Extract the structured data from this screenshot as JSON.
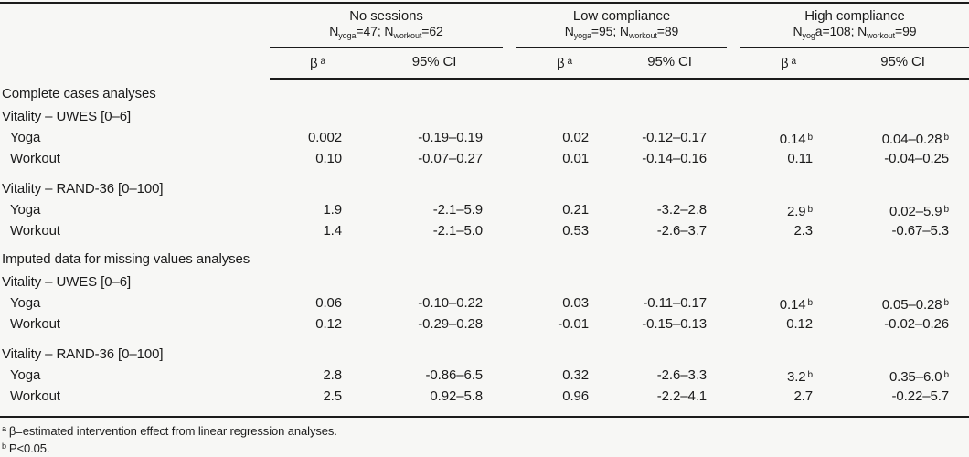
{
  "page": {
    "background": "#f7f7f5",
    "ink": "#1b1b1b"
  },
  "table": {
    "groups": [
      {
        "title": "No sessions",
        "n_segments": [
          {
            "t": "N"
          },
          {
            "sub": "yoga"
          },
          {
            "t": "=47; N"
          },
          {
            "sub": "workout"
          },
          {
            "t": "=62"
          }
        ],
        "beta": "β",
        "beta_sup": "a",
        "ci": "95% CI"
      },
      {
        "title": "Low compliance",
        "n_segments": [
          {
            "t": "N"
          },
          {
            "sub": "yoga"
          },
          {
            "t": "=95; N"
          },
          {
            "sub": "workout"
          },
          {
            "t": "=89"
          }
        ],
        "beta": "β",
        "beta_sup": "a",
        "ci": "95% CI"
      },
      {
        "title": "High compliance",
        "n_segments": [
          {
            "t": "N"
          },
          {
            "sub": "yog"
          },
          {
            "t": "a=108; N"
          },
          {
            "sub": "workout"
          },
          {
            "t": "=99"
          }
        ],
        "beta": "β",
        "beta_sup": "a",
        "ci": "95% CI"
      }
    ],
    "rows": [
      {
        "type": "section",
        "label": "Complete cases analyses"
      },
      {
        "type": "subhead",
        "label": "Vitality – UWES [0–6]"
      },
      {
        "type": "data",
        "label": "Yoga",
        "cells": [
          {
            "beta": "0.002",
            "ci": "-0.19–0.19"
          },
          {
            "beta": "0.02",
            "ci": "-0.12–0.17"
          },
          {
            "beta": "0.14",
            "beta_sup": "b",
            "ci": "0.04–0.28",
            "ci_sup": "b"
          }
        ]
      },
      {
        "type": "data",
        "label": "Workout",
        "cells": [
          {
            "beta": "0.10",
            "ci": "-0.07–0.27"
          },
          {
            "beta": "0.01",
            "ci": "-0.14–0.16"
          },
          {
            "beta": "0.11",
            "ci": "-0.04–0.25"
          }
        ]
      },
      {
        "type": "subhead",
        "label": "Vitality – RAND-36 [0–100]"
      },
      {
        "type": "data",
        "label": "Yoga",
        "cells": [
          {
            "beta": "1.9",
            "ci": "-2.1–5.9"
          },
          {
            "beta": "0.21",
            "ci": "-3.2–2.8"
          },
          {
            "beta": "2.9",
            "beta_sup": "b",
            "ci": "0.02–5.9",
            "ci_sup": "b"
          }
        ]
      },
      {
        "type": "data",
        "label": "Workout",
        "cells": [
          {
            "beta": "1.4",
            "ci": "-2.1–5.0"
          },
          {
            "beta": "0.53",
            "ci": "-2.6–3.7"
          },
          {
            "beta": "2.3",
            "ci": "-0.67–5.3"
          }
        ]
      },
      {
        "type": "section",
        "label": "Imputed data for missing values analyses"
      },
      {
        "type": "subhead",
        "label": "Vitality – UWES [0–6]"
      },
      {
        "type": "data",
        "label": "Yoga",
        "cells": [
          {
            "beta": "0.06",
            "ci": "-0.10–0.22"
          },
          {
            "beta": "0.03",
            "ci": "-0.11–0.17"
          },
          {
            "beta": "0.14",
            "beta_sup": "b",
            "ci": "0.05–0.28",
            "ci_sup": "b"
          }
        ]
      },
      {
        "type": "data",
        "label": "Workout",
        "cells": [
          {
            "beta": "0.12",
            "ci": "-0.29–0.28"
          },
          {
            "beta": "-0.01",
            "ci": "-0.15–0.13"
          },
          {
            "beta": "0.12",
            "ci": "-0.02–0.26"
          }
        ]
      },
      {
        "type": "subhead",
        "label": "Vitality – RAND-36 [0–100]"
      },
      {
        "type": "data",
        "label": "Yoga",
        "cells": [
          {
            "beta": "2.8",
            "ci": "-0.86–6.5"
          },
          {
            "beta": "0.32",
            "ci": "-2.6–3.3"
          },
          {
            "beta": "3.2",
            "beta_sup": "b",
            "ci": "0.35–6.0",
            "ci_sup": "b"
          }
        ]
      },
      {
        "type": "data",
        "label": "Workout",
        "cells": [
          {
            "beta": "2.5",
            "ci": "0.92–5.8"
          },
          {
            "beta": "0.96",
            "ci": "-2.2–4.1"
          },
          {
            "beta": "2.7",
            "ci": "-0.22–5.7"
          }
        ]
      }
    ],
    "footnotes": [
      {
        "marker": "a",
        "text": "β=estimated intervention effect from linear regression analyses."
      },
      {
        "marker": "b",
        "text": "P<0.05."
      }
    ]
  }
}
